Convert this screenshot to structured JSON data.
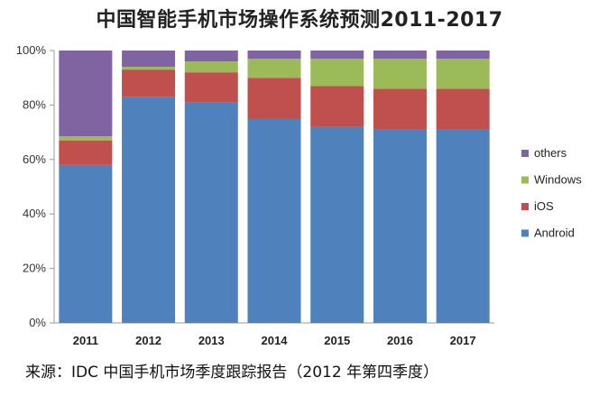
{
  "chart_data": {
    "type": "bar",
    "stacked": true,
    "percent_stacked": true,
    "title": "中国智能手机市场操作系统预测2011-2017",
    "xlabel": "",
    "ylabel": "",
    "categories": [
      "2011",
      "2012",
      "2013",
      "2014",
      "2015",
      "2016",
      "2017"
    ],
    "series": [
      {
        "name": "Android",
        "color": "#4f81bd",
        "values": [
          58,
          83,
          81,
          75,
          72,
          71,
          71
        ]
      },
      {
        "name": "iOS",
        "color": "#c0504d",
        "values": [
          9,
          10,
          11,
          15,
          15,
          15,
          15
        ]
      },
      {
        "name": "Windows",
        "color": "#9bbb59",
        "values": [
          1.5,
          1,
          4,
          7,
          10,
          11,
          11
        ]
      },
      {
        "name": "others",
        "color": "#8064a2",
        "values": [
          31.5,
          6,
          4,
          3,
          3,
          3,
          3
        ]
      }
    ],
    "ylim": [
      0,
      100
    ],
    "yticks": [
      "0%",
      "20%",
      "40%",
      "60%",
      "80%",
      "100%"
    ],
    "grid": false,
    "legend_position": "right",
    "source": "来源：IDC 中国手机市场季度跟踪报告（2012 年第四季度）"
  }
}
